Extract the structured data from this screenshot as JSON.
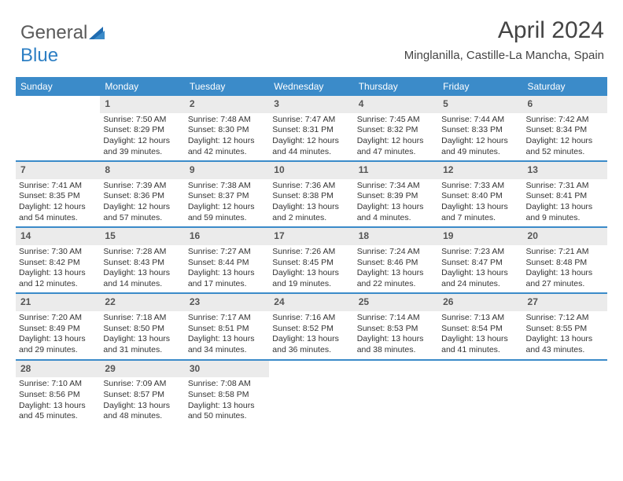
{
  "logo": {
    "text1": "General",
    "text2": "Blue",
    "color_gray": "#5a5a5a",
    "color_blue": "#2d7fc4"
  },
  "header": {
    "title": "April 2024",
    "location": "Minglanilla, Castille-La Mancha, Spain"
  },
  "theme": {
    "header_bg": "#3b8bc9",
    "daynum_bg": "#ebebeb",
    "divider": "#3b8bc9"
  },
  "day_labels": [
    "Sunday",
    "Monday",
    "Tuesday",
    "Wednesday",
    "Thursday",
    "Friday",
    "Saturday"
  ],
  "weeks": [
    [
      {
        "n": "",
        "sunrise": "",
        "sunset": "",
        "daylight": ""
      },
      {
        "n": "1",
        "sunrise": "Sunrise: 7:50 AM",
        "sunset": "Sunset: 8:29 PM",
        "daylight": "Daylight: 12 hours and 39 minutes."
      },
      {
        "n": "2",
        "sunrise": "Sunrise: 7:48 AM",
        "sunset": "Sunset: 8:30 PM",
        "daylight": "Daylight: 12 hours and 42 minutes."
      },
      {
        "n": "3",
        "sunrise": "Sunrise: 7:47 AM",
        "sunset": "Sunset: 8:31 PM",
        "daylight": "Daylight: 12 hours and 44 minutes."
      },
      {
        "n": "4",
        "sunrise": "Sunrise: 7:45 AM",
        "sunset": "Sunset: 8:32 PM",
        "daylight": "Daylight: 12 hours and 47 minutes."
      },
      {
        "n": "5",
        "sunrise": "Sunrise: 7:44 AM",
        "sunset": "Sunset: 8:33 PM",
        "daylight": "Daylight: 12 hours and 49 minutes."
      },
      {
        "n": "6",
        "sunrise": "Sunrise: 7:42 AM",
        "sunset": "Sunset: 8:34 PM",
        "daylight": "Daylight: 12 hours and 52 minutes."
      }
    ],
    [
      {
        "n": "7",
        "sunrise": "Sunrise: 7:41 AM",
        "sunset": "Sunset: 8:35 PM",
        "daylight": "Daylight: 12 hours and 54 minutes."
      },
      {
        "n": "8",
        "sunrise": "Sunrise: 7:39 AM",
        "sunset": "Sunset: 8:36 PM",
        "daylight": "Daylight: 12 hours and 57 minutes."
      },
      {
        "n": "9",
        "sunrise": "Sunrise: 7:38 AM",
        "sunset": "Sunset: 8:37 PM",
        "daylight": "Daylight: 12 hours and 59 minutes."
      },
      {
        "n": "10",
        "sunrise": "Sunrise: 7:36 AM",
        "sunset": "Sunset: 8:38 PM",
        "daylight": "Daylight: 13 hours and 2 minutes."
      },
      {
        "n": "11",
        "sunrise": "Sunrise: 7:34 AM",
        "sunset": "Sunset: 8:39 PM",
        "daylight": "Daylight: 13 hours and 4 minutes."
      },
      {
        "n": "12",
        "sunrise": "Sunrise: 7:33 AM",
        "sunset": "Sunset: 8:40 PM",
        "daylight": "Daylight: 13 hours and 7 minutes."
      },
      {
        "n": "13",
        "sunrise": "Sunrise: 7:31 AM",
        "sunset": "Sunset: 8:41 PM",
        "daylight": "Daylight: 13 hours and 9 minutes."
      }
    ],
    [
      {
        "n": "14",
        "sunrise": "Sunrise: 7:30 AM",
        "sunset": "Sunset: 8:42 PM",
        "daylight": "Daylight: 13 hours and 12 minutes."
      },
      {
        "n": "15",
        "sunrise": "Sunrise: 7:28 AM",
        "sunset": "Sunset: 8:43 PM",
        "daylight": "Daylight: 13 hours and 14 minutes."
      },
      {
        "n": "16",
        "sunrise": "Sunrise: 7:27 AM",
        "sunset": "Sunset: 8:44 PM",
        "daylight": "Daylight: 13 hours and 17 minutes."
      },
      {
        "n": "17",
        "sunrise": "Sunrise: 7:26 AM",
        "sunset": "Sunset: 8:45 PM",
        "daylight": "Daylight: 13 hours and 19 minutes."
      },
      {
        "n": "18",
        "sunrise": "Sunrise: 7:24 AM",
        "sunset": "Sunset: 8:46 PM",
        "daylight": "Daylight: 13 hours and 22 minutes."
      },
      {
        "n": "19",
        "sunrise": "Sunrise: 7:23 AM",
        "sunset": "Sunset: 8:47 PM",
        "daylight": "Daylight: 13 hours and 24 minutes."
      },
      {
        "n": "20",
        "sunrise": "Sunrise: 7:21 AM",
        "sunset": "Sunset: 8:48 PM",
        "daylight": "Daylight: 13 hours and 27 minutes."
      }
    ],
    [
      {
        "n": "21",
        "sunrise": "Sunrise: 7:20 AM",
        "sunset": "Sunset: 8:49 PM",
        "daylight": "Daylight: 13 hours and 29 minutes."
      },
      {
        "n": "22",
        "sunrise": "Sunrise: 7:18 AM",
        "sunset": "Sunset: 8:50 PM",
        "daylight": "Daylight: 13 hours and 31 minutes."
      },
      {
        "n": "23",
        "sunrise": "Sunrise: 7:17 AM",
        "sunset": "Sunset: 8:51 PM",
        "daylight": "Daylight: 13 hours and 34 minutes."
      },
      {
        "n": "24",
        "sunrise": "Sunrise: 7:16 AM",
        "sunset": "Sunset: 8:52 PM",
        "daylight": "Daylight: 13 hours and 36 minutes."
      },
      {
        "n": "25",
        "sunrise": "Sunrise: 7:14 AM",
        "sunset": "Sunset: 8:53 PM",
        "daylight": "Daylight: 13 hours and 38 minutes."
      },
      {
        "n": "26",
        "sunrise": "Sunrise: 7:13 AM",
        "sunset": "Sunset: 8:54 PM",
        "daylight": "Daylight: 13 hours and 41 minutes."
      },
      {
        "n": "27",
        "sunrise": "Sunrise: 7:12 AM",
        "sunset": "Sunset: 8:55 PM",
        "daylight": "Daylight: 13 hours and 43 minutes."
      }
    ],
    [
      {
        "n": "28",
        "sunrise": "Sunrise: 7:10 AM",
        "sunset": "Sunset: 8:56 PM",
        "daylight": "Daylight: 13 hours and 45 minutes."
      },
      {
        "n": "29",
        "sunrise": "Sunrise: 7:09 AM",
        "sunset": "Sunset: 8:57 PM",
        "daylight": "Daylight: 13 hours and 48 minutes."
      },
      {
        "n": "30",
        "sunrise": "Sunrise: 7:08 AM",
        "sunset": "Sunset: 8:58 PM",
        "daylight": "Daylight: 13 hours and 50 minutes."
      },
      {
        "n": "",
        "sunrise": "",
        "sunset": "",
        "daylight": ""
      },
      {
        "n": "",
        "sunrise": "",
        "sunset": "",
        "daylight": ""
      },
      {
        "n": "",
        "sunrise": "",
        "sunset": "",
        "daylight": ""
      },
      {
        "n": "",
        "sunrise": "",
        "sunset": "",
        "daylight": ""
      }
    ]
  ]
}
